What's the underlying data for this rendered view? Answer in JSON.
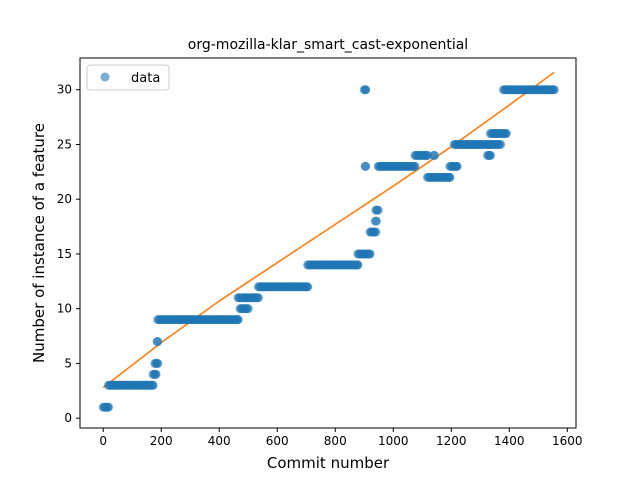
{
  "chart_data": {
    "type": "scatter",
    "title": "org-mozilla-klar_smart_cast-exponential",
    "xlabel": "Commit number",
    "ylabel": "Number of instance of a feature",
    "xlim": [
      -80,
      1630
    ],
    "ylim": [
      -0.9,
      32.9
    ],
    "xticks": [
      0,
      200,
      400,
      600,
      800,
      1000,
      1200,
      1400,
      1600
    ],
    "yticks": [
      0,
      5,
      10,
      15,
      20,
      25,
      30
    ],
    "grid": false,
    "legend": {
      "location": "upper-left",
      "entries": [
        "data"
      ]
    },
    "colors": {
      "data": "#1f77b4",
      "fit": "#ff7f0e"
    },
    "series": [
      {
        "name": "data",
        "kind": "points",
        "runs": [
          {
            "x_start": 0,
            "x_end": 18,
            "y": 1
          },
          {
            "x_start": 18,
            "x_end": 172,
            "y": 3
          },
          {
            "x_start": 172,
            "x_end": 182,
            "y": 4
          },
          {
            "x_start": 178,
            "x_end": 188,
            "y": 5
          },
          {
            "x_start": 186,
            "x_end": 188,
            "y": 7
          },
          {
            "x_start": 188,
            "x_end": 465,
            "y": 9
          },
          {
            "x_start": 465,
            "x_end": 472,
            "y": 11
          },
          {
            "x_start": 472,
            "x_end": 500,
            "y": 10
          },
          {
            "x_start": 480,
            "x_end": 535,
            "y": 11
          },
          {
            "x_start": 535,
            "x_end": 705,
            "y": 12
          },
          {
            "x_start": 705,
            "x_end": 878,
            "y": 14
          },
          {
            "x_start": 878,
            "x_end": 920,
            "y": 15
          },
          {
            "x_start": 900,
            "x_end": 905,
            "y": 30
          },
          {
            "x_start": 903,
            "x_end": 905,
            "y": 23
          },
          {
            "x_start": 920,
            "x_end": 940,
            "y": 17
          },
          {
            "x_start": 938,
            "x_end": 942,
            "y": 18
          },
          {
            "x_start": 940,
            "x_end": 948,
            "y": 19
          },
          {
            "x_start": 948,
            "x_end": 1075,
            "y": 23
          },
          {
            "x_start": 1075,
            "x_end": 1118,
            "y": 24
          },
          {
            "x_start": 1118,
            "x_end": 1195,
            "y": 22
          },
          {
            "x_start": 1140,
            "x_end": 1142,
            "y": 24
          },
          {
            "x_start": 1195,
            "x_end": 1220,
            "y": 23
          },
          {
            "x_start": 1210,
            "x_end": 1330,
            "y": 25
          },
          {
            "x_start": 1325,
            "x_end": 1335,
            "y": 24
          },
          {
            "x_start": 1330,
            "x_end": 1370,
            "y": 25
          },
          {
            "x_start": 1335,
            "x_end": 1390,
            "y": 26
          },
          {
            "x_start": 1380,
            "x_end": 1555,
            "y": 30
          }
        ]
      },
      {
        "kind": "line",
        "x": [
          0,
          200,
          400,
          600,
          800,
          1000,
          1200,
          1400,
          1555
        ],
        "y": [
          2.8,
          6.9,
          10.7,
          14.2,
          17.7,
          21.2,
          24.8,
          28.6,
          31.6
        ]
      }
    ]
  }
}
